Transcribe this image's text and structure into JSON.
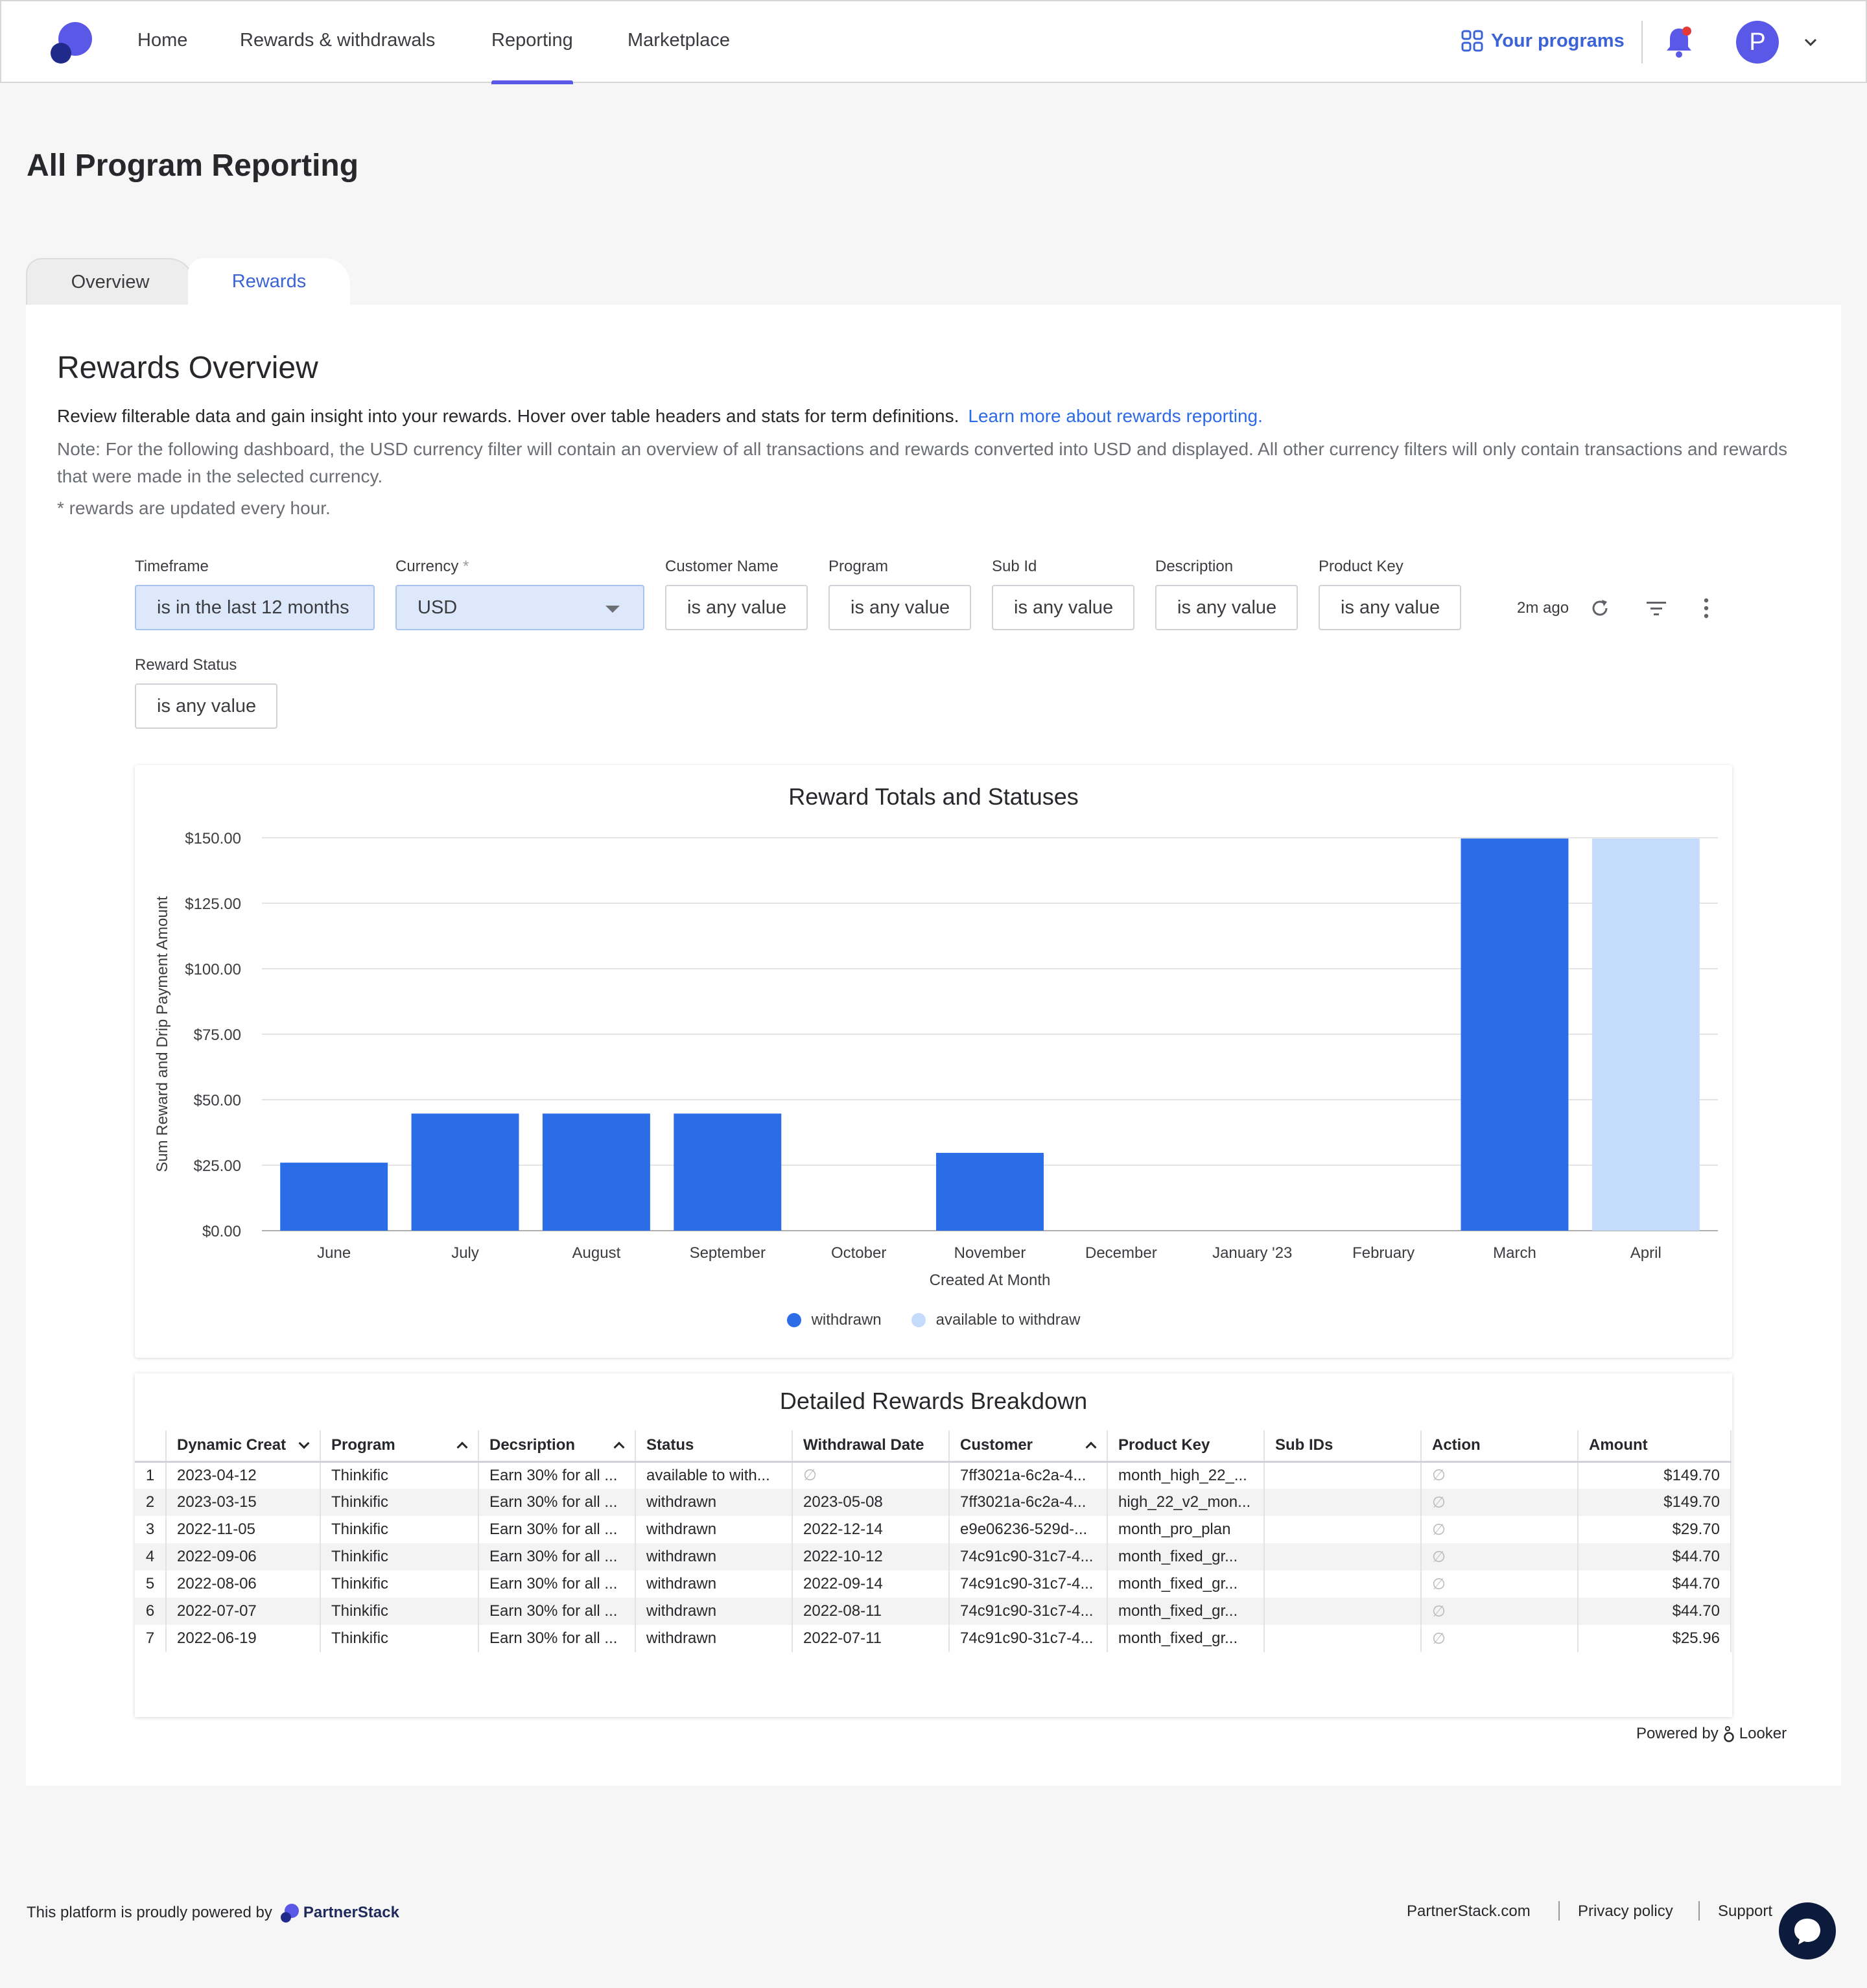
{
  "nav": {
    "items": [
      {
        "label": "Home"
      },
      {
        "label": "Rewards & withdrawals"
      },
      {
        "label": "Reporting"
      },
      {
        "label": "Marketplace"
      }
    ],
    "programs_label": "Your programs",
    "avatar_initial": "P",
    "accent_color": "#5a58e6",
    "link_color": "#3b63d6"
  },
  "page": {
    "title": "All Program Reporting",
    "tabs": [
      {
        "label": "Overview"
      },
      {
        "label": "Rewards"
      }
    ],
    "active_tab": "Rewards"
  },
  "section": {
    "title": "Rewards Overview",
    "intro": "Review filterable data and gain insight into your rewards. Hover over table headers and stats for term definitions.",
    "learn_more": "Learn more about rewards reporting.",
    "note": "Note: For the following dashboard, the USD currency filter will contain an overview of all transactions and rewards converted into USD and displayed. All other currency filters will only contain transactions and rewards that were made in the selected currency.",
    "hourly": "* rewards are updated every hour."
  },
  "filters": {
    "timeframe": {
      "label": "Timeframe",
      "value": "is in the last 12 months"
    },
    "currency": {
      "label": "Currency",
      "required_mark": "*",
      "value": "USD"
    },
    "customer_name": {
      "label": "Customer Name",
      "value": "is any value"
    },
    "program": {
      "label": "Program",
      "value": "is any value"
    },
    "sub_id": {
      "label": "Sub Id",
      "value": "is any value"
    },
    "description": {
      "label": "Description",
      "value": "is any value"
    },
    "product_key": {
      "label": "Product Key",
      "value": "is any value"
    },
    "reward_status": {
      "label": "Reward Status",
      "value": "is any value"
    },
    "updated_ago": "2m ago"
  },
  "chart_data": {
    "type": "bar",
    "title": "Reward Totals and Statuses",
    "xlabel": "Created At Month",
    "ylabel": "Sum Reward and Drip Payment Amount",
    "categories": [
      "June",
      "July",
      "August",
      "September",
      "October",
      "November",
      "December",
      "January '23",
      "February",
      "March",
      "April"
    ],
    "series": [
      {
        "name": "withdrawn",
        "color": "#2a6de6",
        "values": [
          25.96,
          44.7,
          44.7,
          44.7,
          0,
          29.7,
          0,
          0,
          0,
          149.7,
          0
        ]
      },
      {
        "name": "available to withdraw",
        "color": "#c4dbfb",
        "values": [
          0,
          0,
          0,
          0,
          0,
          0,
          0,
          0,
          0,
          0,
          149.7
        ]
      }
    ],
    "ylim": [
      0,
      150
    ],
    "yticks": [
      "$0.00",
      "$25.00",
      "$50.00",
      "$75.00",
      "$100.00",
      "$125.00",
      "$150.00"
    ],
    "grid": true,
    "legend_position": "bottom"
  },
  "table": {
    "title": "Detailed Rewards Breakdown",
    "columns": [
      "",
      "Dynamic Creat",
      "Program",
      "Decsription",
      "Status",
      "Withdrawal Date",
      "Customer",
      "Product Key",
      "Sub IDs",
      "Action",
      "Amount"
    ],
    "null_symbol": "∅",
    "rows": [
      [
        "1",
        "2023-04-12",
        "Thinkific",
        "Earn 30% for all ...",
        "available to with...",
        "∅",
        "7ff3021a-6c2a-4...",
        "month_high_22_...",
        "",
        "∅",
        "$149.70"
      ],
      [
        "2",
        "2023-03-15",
        "Thinkific",
        "Earn 30% for all ...",
        "withdrawn",
        "2023-05-08",
        "7ff3021a-6c2a-4...",
        "high_22_v2_mon...",
        "",
        "∅",
        "$149.70"
      ],
      [
        "3",
        "2022-11-05",
        "Thinkific",
        "Earn 30% for all ...",
        "withdrawn",
        "2022-12-14",
        "e9e06236-529d-...",
        "month_pro_plan",
        "",
        "∅",
        "$29.70"
      ],
      [
        "4",
        "2022-09-06",
        "Thinkific",
        "Earn 30% for all ...",
        "withdrawn",
        "2022-10-12",
        "74c91c90-31c7-4...",
        "month_fixed_gr...",
        "",
        "∅",
        "$44.70"
      ],
      [
        "5",
        "2022-08-06",
        "Thinkific",
        "Earn 30% for all ...",
        "withdrawn",
        "2022-09-14",
        "74c91c90-31c7-4...",
        "month_fixed_gr...",
        "",
        "∅",
        "$44.70"
      ],
      [
        "6",
        "2022-07-07",
        "Thinkific",
        "Earn 30% for all ...",
        "withdrawn",
        "2022-08-11",
        "74c91c90-31c7-4...",
        "month_fixed_gr...",
        "",
        "∅",
        "$44.70"
      ],
      [
        "7",
        "2022-06-19",
        "Thinkific",
        "Earn 30% for all ...",
        "withdrawn",
        "2022-07-11",
        "74c91c90-31c7-4...",
        "month_fixed_gr...",
        "",
        "∅",
        "$25.96"
      ]
    ],
    "powered_by": "Powered by",
    "powered_brand": "Looker"
  },
  "footer": {
    "powered_text": "This platform is proudly powered by",
    "brand": "PartnerStack",
    "links": [
      "PartnerStack.com",
      "Privacy policy",
      "Support"
    ]
  }
}
